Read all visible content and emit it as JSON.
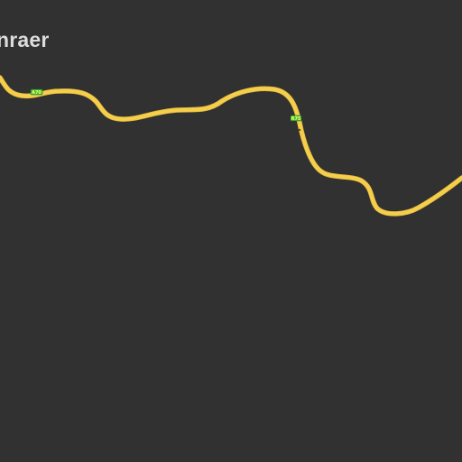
{
  "map": {
    "background_color": "#313131",
    "place_label": "nraer",
    "road": {
      "color": "#f5cf4c",
      "casing_color": "#e0b93e"
    },
    "route_shields": [
      {
        "ref": "A70",
        "fill": "#3fbf3f",
        "text_color": "#ffff66"
      },
      {
        "ref": "R75",
        "fill": "#3fbf3f",
        "text_color": "#ffff66"
      }
    ]
  }
}
